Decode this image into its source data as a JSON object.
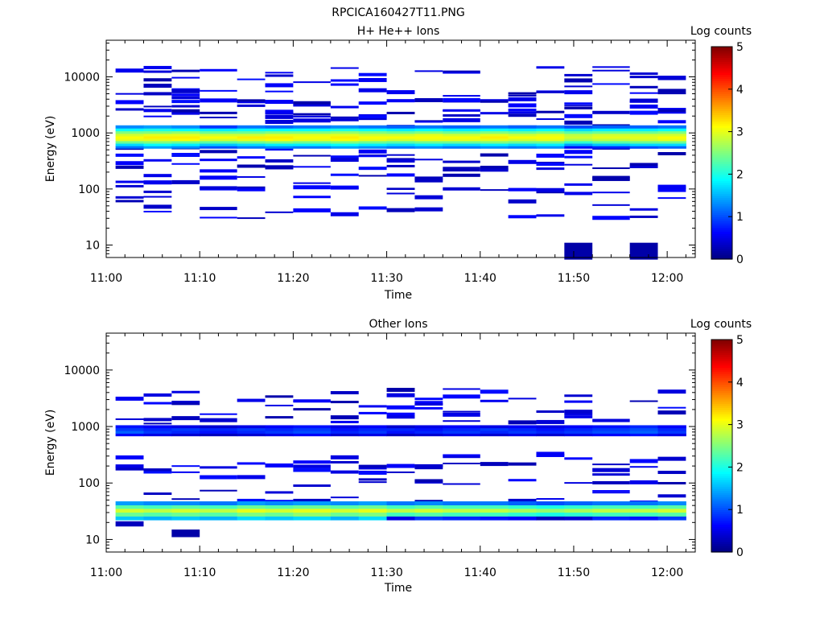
{
  "figure_title": "RPCICA160427T11.PNG",
  "chart_data": [
    {
      "type": "heatmap",
      "title": "H+ He++ Ions",
      "xlabel": "Time",
      "ylabel": "Energy (eV)",
      "x_ticks": [
        "11:00",
        "11:10",
        "11:20",
        "11:30",
        "11:40",
        "11:50",
        "12:00"
      ],
      "y_ticks": [
        "10",
        "100",
        "1000",
        "10000"
      ],
      "y_scale": "log",
      "ylim": [
        6,
        45000
      ],
      "xlim": [
        "11:00",
        "12:03"
      ],
      "colorbar": {
        "label": "Log counts",
        "ticks": [
          "0",
          "1",
          "2",
          "3",
          "4",
          "5"
        ],
        "range": [
          0,
          5
        ]
      },
      "grid": false,
      "columns": [
        {
          "t0": "11:01",
          "t1": "11:04"
        },
        {
          "t0": "11:04",
          "t1": "11:07"
        },
        {
          "t0": "11:07",
          "t1": "11:10"
        },
        {
          "t0": "11:10",
          "t1": "11:14"
        },
        {
          "t0": "11:14",
          "t1": "11:17"
        },
        {
          "t0": "11:17",
          "t1": "11:20"
        },
        {
          "t0": "11:20",
          "t1": "11:24"
        },
        {
          "t0": "11:24",
          "t1": "11:27"
        },
        {
          "t0": "11:27",
          "t1": "11:30"
        },
        {
          "t0": "11:30",
          "t1": "11:33"
        },
        {
          "t0": "11:33",
          "t1": "11:36"
        },
        {
          "t0": "11:36",
          "t1": "11:40"
        },
        {
          "t0": "11:40",
          "t1": "11:43"
        },
        {
          "t0": "11:43",
          "t1": "11:46"
        },
        {
          "t0": "11:46",
          "t1": "11:49"
        },
        {
          "t0": "11:49",
          "t1": "11:52"
        },
        {
          "t0": "11:52",
          "t1": "11:56"
        },
        {
          "t0": "11:56",
          "t1": "11:59"
        },
        {
          "t0": "11:59",
          "t1": "12:02"
        }
      ],
      "energy_bins_eV": [
        560,
        620,
        690,
        760,
        840,
        930,
        1030,
        1150,
        1290
      ],
      "band_log_counts": [
        [
          1.2,
          1.7,
          2.4,
          3.0,
          3.1,
          2.9,
          2.5,
          1.9,
          1.3
        ],
        [
          1.4,
          1.9,
          2.5,
          3.0,
          3.2,
          3.0,
          2.5,
          2.0,
          1.4
        ],
        [
          1.3,
          1.8,
          2.4,
          3.1,
          3.2,
          3.0,
          2.6,
          1.9,
          1.3
        ],
        [
          1.0,
          1.6,
          2.3,
          2.9,
          3.1,
          2.9,
          2.4,
          1.8,
          0.9
        ],
        [
          1.2,
          1.7,
          2.4,
          3.0,
          3.2,
          2.9,
          2.4,
          1.9,
          1.2
        ],
        [
          1.3,
          1.8,
          2.5,
          3.1,
          3.2,
          3.0,
          2.5,
          1.9,
          1.1
        ],
        [
          1.2,
          1.8,
          2.4,
          3.0,
          3.1,
          3.0,
          2.5,
          1.9,
          1.2
        ],
        [
          1.4,
          1.9,
          2.5,
          3.1,
          3.2,
          3.0,
          2.6,
          2.0,
          1.3
        ],
        [
          1.3,
          1.8,
          2.4,
          3.0,
          3.1,
          2.9,
          2.5,
          1.9,
          1.2
        ],
        [
          1.2,
          1.7,
          2.3,
          2.9,
          3.1,
          2.9,
          2.4,
          1.8,
          1.1
        ],
        [
          1.3,
          1.8,
          2.4,
          3.0,
          3.1,
          3.0,
          2.5,
          1.9,
          1.2
        ],
        [
          1.2,
          1.7,
          2.4,
          3.0,
          3.1,
          2.9,
          2.4,
          1.8,
          1.1
        ],
        [
          1.3,
          1.8,
          2.5,
          3.0,
          3.2,
          3.0,
          2.5,
          1.9,
          1.2
        ],
        [
          1.2,
          1.7,
          2.4,
          2.9,
          3.1,
          2.9,
          2.4,
          1.8,
          1.1
        ],
        [
          1.3,
          1.8,
          2.4,
          3.0,
          3.1,
          3.0,
          2.5,
          1.9,
          1.2
        ],
        [
          0.6,
          1.4,
          2.1,
          2.7,
          2.9,
          2.8,
          2.3,
          1.7,
          1.0
        ],
        [
          0.8,
          1.6,
          2.3,
          2.8,
          3.0,
          2.9,
          2.4,
          1.8,
          1.1
        ],
        [
          1.0,
          1.7,
          2.4,
          2.9,
          3.0,
          2.9,
          2.4,
          1.8,
          1.1
        ],
        [
          1.1,
          1.7,
          2.4,
          3.0,
          3.1,
          2.9,
          2.5,
          1.9,
          1.2
        ]
      ],
      "sparse_bins_eV": [
        12000,
        7000,
        4200,
        3000,
        2300,
        1600,
        430,
        300,
        200,
        120,
        80,
        40
      ],
      "blocks": [
        {
          "t0": "11:49",
          "t1": "11:52",
          "e_lo": 5.5,
          "e_hi": 11,
          "log_counts": 0.2
        },
        {
          "t0": "11:56",
          "t1": "11:59",
          "e_lo": 5.5,
          "e_hi": 11,
          "log_counts": 0.2
        }
      ]
    },
    {
      "type": "heatmap",
      "title": "Other Ions",
      "xlabel": "Time",
      "ylabel": "Energy (eV)",
      "x_ticks": [
        "11:00",
        "11:10",
        "11:20",
        "11:30",
        "11:40",
        "11:50",
        "12:00"
      ],
      "y_ticks": [
        "10",
        "100",
        "1000",
        "10000"
      ],
      "y_scale": "log",
      "ylim": [
        6,
        45000
      ],
      "xlim": [
        "11:00",
        "12:03"
      ],
      "colorbar": {
        "label": "Log counts",
        "ticks": [
          "0",
          "1",
          "2",
          "3",
          "4",
          "5"
        ],
        "range": [
          0,
          5
        ]
      },
      "grid": false,
      "energy_bins_eV": [
        24,
        28,
        33,
        38,
        44
      ],
      "band_log_counts": [
        [
          1.6,
          2.4,
          2.9,
          2.3,
          1.4
        ],
        [
          1.5,
          2.3,
          2.8,
          2.2,
          1.3
        ],
        [
          1.6,
          2.4,
          2.9,
          2.3,
          1.3
        ],
        [
          1.5,
          2.3,
          2.8,
          2.2,
          1.2
        ],
        [
          1.7,
          2.5,
          3.0,
          2.4,
          1.4
        ],
        [
          1.6,
          2.4,
          2.9,
          2.3,
          1.3
        ],
        [
          1.7,
          2.6,
          3.0,
          2.4,
          1.4
        ],
        [
          1.5,
          2.4,
          2.9,
          2.3,
          1.3
        ],
        [
          1.7,
          2.5,
          3.0,
          2.4,
          1.4
        ],
        [
          0.5,
          2.2,
          2.8,
          2.2,
          1.2
        ],
        [
          0.9,
          2.3,
          2.9,
          2.3,
          1.3
        ],
        [
          0.8,
          2.2,
          2.8,
          2.2,
          1.2
        ],
        [
          0.7,
          2.2,
          2.8,
          2.2,
          1.2
        ],
        [
          0.6,
          2.1,
          2.7,
          2.1,
          1.1
        ],
        [
          0.3,
          2.0,
          2.6,
          2.0,
          1.0
        ],
        [
          0.4,
          2.1,
          2.7,
          2.1,
          1.1
        ],
        [
          0.8,
          2.2,
          2.8,
          2.2,
          1.2
        ],
        [
          0.7,
          2.2,
          2.8,
          2.2,
          1.2
        ],
        [
          0.9,
          2.3,
          2.9,
          2.3,
          1.3
        ]
      ],
      "secondary_band_eV": [
        720,
        800,
        900,
        1000
      ],
      "secondary_band_log_counts": [
        [
          0.6,
          1.1,
          0.9,
          0.7
        ],
        [
          0.5,
          0.9,
          0.8,
          0.6
        ],
        [
          0.4,
          0.8,
          0.9,
          0.5
        ],
        [
          0.3,
          0.7,
          0.8,
          0.4
        ],
        [
          0.4,
          0.8,
          0.9,
          0.5
        ],
        [
          0.5,
          0.9,
          0.8,
          0.6
        ],
        [
          0.6,
          1.0,
          0.9,
          0.7
        ],
        [
          0.4,
          0.8,
          0.7,
          0.5
        ],
        [
          0.5,
          0.9,
          0.8,
          0.6
        ],
        [
          0.3,
          0.7,
          0.8,
          0.4
        ],
        [
          0.4,
          0.8,
          0.7,
          0.5
        ],
        [
          0.5,
          0.9,
          0.8,
          0.6
        ],
        [
          0.4,
          0.8,
          0.9,
          0.5
        ],
        [
          0.5,
          0.9,
          0.8,
          0.6
        ],
        [
          0.4,
          0.8,
          0.7,
          0.5
        ],
        [
          0.5,
          0.9,
          0.8,
          0.6
        ],
        [
          0.6,
          1.0,
          0.9,
          0.7
        ],
        [
          0.7,
          1.1,
          1.0,
          0.8
        ],
        [
          0.5,
          0.9,
          0.8,
          0.6
        ]
      ],
      "blocks": [
        {
          "t0": "11:07",
          "t1": "11:10",
          "e_lo": 11,
          "e_hi": 15,
          "log_counts": 0.2
        },
        {
          "t0": "11:01",
          "t1": "11:04",
          "e_lo": 17,
          "e_hi": 21,
          "log_counts": 0.3
        }
      ]
    }
  ]
}
